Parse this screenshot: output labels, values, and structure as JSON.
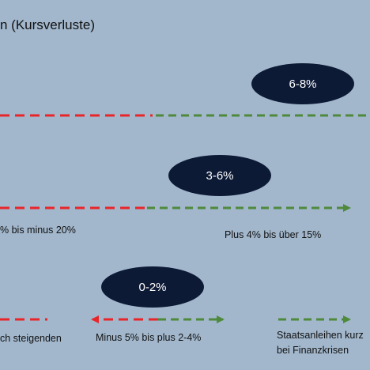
{
  "title": "n (Kursverluste)",
  "ovals": [
    {
      "id": "high",
      "label": "6-8%"
    },
    {
      "id": "mid",
      "label": "3-6%"
    },
    {
      "id": "low",
      "label": "0-2%"
    }
  ],
  "labels": {
    "mid_left": "% bis minus 20%",
    "mid_right": "Plus 4% bis über 15%",
    "low_left": "ch steigenden",
    "low_mid": "Minus 5% bis plus 2-4%",
    "low_right_1": "Staatsanleihen kurz",
    "low_right_2": "bei Finanzkrisen"
  },
  "colors": {
    "background": "#a2b7cc",
    "oval": "#0d1a36",
    "loss_dash": "#e8262a",
    "gain_dash": "#4f8a3c"
  }
}
